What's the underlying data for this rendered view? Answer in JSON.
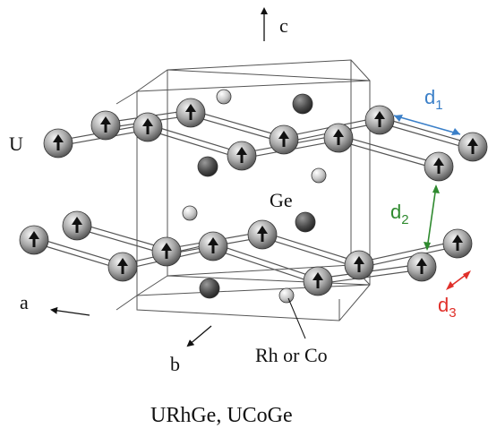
{
  "labels": {
    "axis_c": "c",
    "axis_a": "a",
    "axis_b": "b",
    "atom_u": "U",
    "atom_ge": "Ge",
    "atom_rh_co": "Rh or Co",
    "caption": "URhGe, UCoGe"
  },
  "distances": {
    "d1": {
      "letter": "d",
      "sub": "1"
    },
    "d2": {
      "letter": "d",
      "sub": "2"
    },
    "d3": {
      "letter": "d",
      "sub": "3"
    }
  },
  "colors": {
    "d1": "#3a7fc8",
    "d2": "#2f8a2f",
    "d3": "#e0302a",
    "u_atom": "#8a8a8a",
    "ge_atom": "#444444",
    "rh_atom": "#c4c4c4"
  }
}
